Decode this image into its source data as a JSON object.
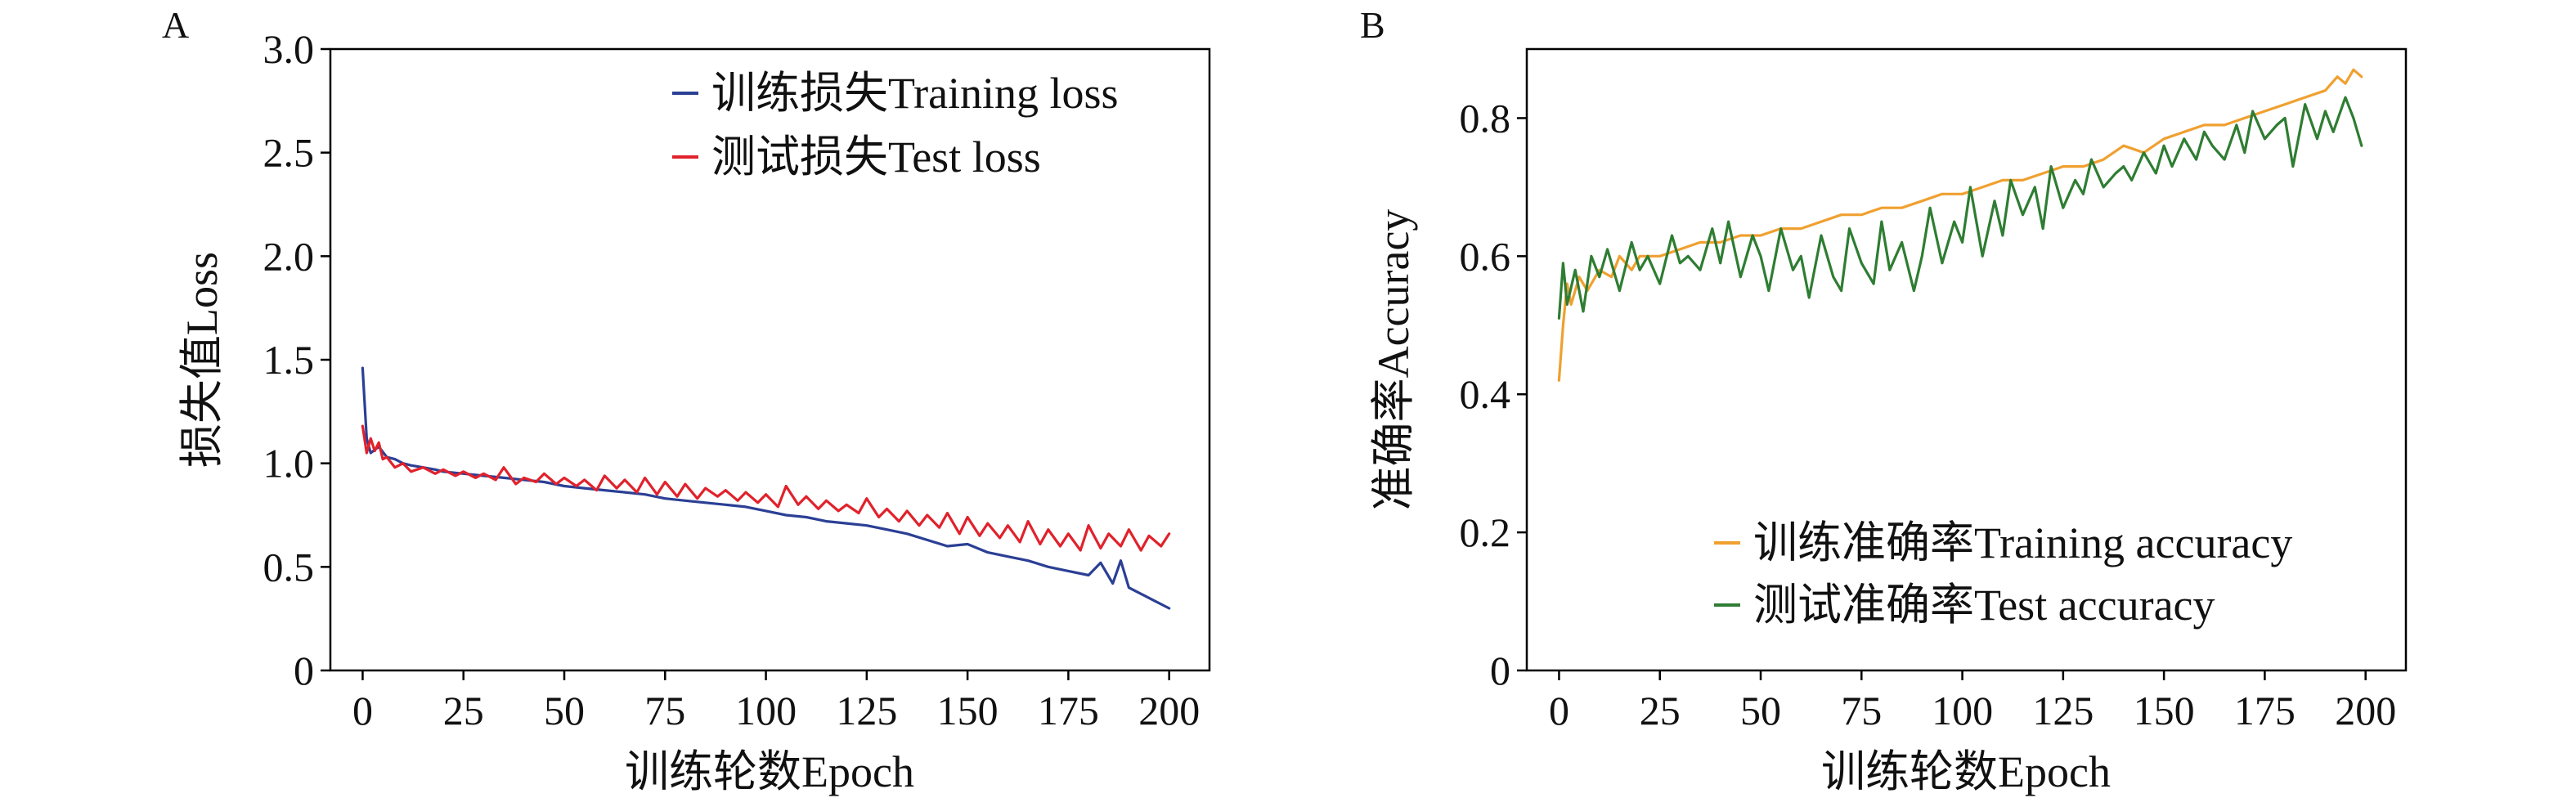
{
  "colors": {
    "training_loss": "#2b3f95",
    "test_loss": "#e0222c",
    "training_accuracy": "#f0a030",
    "test_accuracy": "#2e7d32"
  },
  "chart_data": [
    {
      "type": "line",
      "panel_label": "A",
      "title": "",
      "xlabel": "训练轮数Epoch",
      "ylabel": "损失值Loss",
      "xlim": [
        -8,
        210
      ],
      "ylim": [
        0,
        3.0
      ],
      "xticks": [
        0,
        25,
        50,
        75,
        100,
        125,
        150,
        175,
        200
      ],
      "xtick_labels": [
        "0",
        "25",
        "50",
        "75",
        "100",
        "125",
        "150",
        "175",
        "200"
      ],
      "yticks": [
        0,
        0.5,
        1.0,
        1.5,
        2.0,
        2.5,
        3.0
      ],
      "ytick_labels": [
        "0",
        "0.5",
        "1.0",
        "1.5",
        "2.0",
        "2.5",
        "3.0"
      ],
      "grid": false,
      "legend_position": "top-right",
      "series": [
        {
          "name": "训练损失Training loss",
          "color_key": "training_loss",
          "x": [
            0,
            1,
            2,
            4,
            6,
            8,
            10,
            12,
            15,
            18,
            20,
            25,
            30,
            35,
            40,
            45,
            50,
            55,
            60,
            65,
            70,
            75,
            80,
            85,
            90,
            95,
            100,
            105,
            110,
            115,
            120,
            125,
            130,
            135,
            140,
            145,
            150,
            155,
            160,
            165,
            170,
            175,
            180,
            183,
            186,
            188,
            190,
            193,
            196,
            200
          ],
          "y": [
            1.46,
            1.12,
            1.05,
            1.08,
            1.03,
            1.02,
            1.0,
            0.99,
            0.98,
            0.97,
            0.96,
            0.95,
            0.94,
            0.93,
            0.92,
            0.91,
            0.89,
            0.88,
            0.87,
            0.86,
            0.85,
            0.83,
            0.82,
            0.81,
            0.8,
            0.79,
            0.77,
            0.75,
            0.74,
            0.72,
            0.71,
            0.7,
            0.68,
            0.66,
            0.63,
            0.6,
            0.61,
            0.57,
            0.55,
            0.53,
            0.5,
            0.48,
            0.46,
            0.52,
            0.42,
            0.53,
            0.4,
            0.37,
            0.34,
            0.3
          ]
        },
        {
          "name": "测试损失Test loss",
          "color_key": "test_loss",
          "x": [
            0,
            1,
            2,
            3,
            4,
            5,
            6,
            8,
            10,
            12,
            15,
            18,
            20,
            23,
            25,
            28,
            30,
            33,
            35,
            38,
            40,
            43,
            45,
            48,
            50,
            53,
            55,
            58,
            60,
            63,
            65,
            68,
            70,
            73,
            75,
            78,
            80,
            83,
            85,
            88,
            90,
            93,
            95,
            98,
            100,
            103,
            105,
            108,
            110,
            113,
            115,
            118,
            120,
            123,
            125,
            128,
            130,
            133,
            135,
            138,
            140,
            143,
            145,
            148,
            150,
            153,
            155,
            158,
            160,
            163,
            165,
            168,
            170,
            173,
            175,
            178,
            180,
            183,
            185,
            188,
            190,
            193,
            195,
            198,
            200
          ],
          "y": [
            1.18,
            1.05,
            1.12,
            1.06,
            1.1,
            1.02,
            1.03,
            0.98,
            1.0,
            0.96,
            0.98,
            0.95,
            0.97,
            0.94,
            0.96,
            0.93,
            0.95,
            0.92,
            0.98,
            0.9,
            0.93,
            0.91,
            0.95,
            0.9,
            0.93,
            0.89,
            0.92,
            0.87,
            0.94,
            0.88,
            0.92,
            0.86,
            0.93,
            0.85,
            0.91,
            0.84,
            0.9,
            0.83,
            0.88,
            0.84,
            0.87,
            0.82,
            0.86,
            0.81,
            0.85,
            0.79,
            0.89,
            0.8,
            0.84,
            0.78,
            0.82,
            0.77,
            0.8,
            0.76,
            0.83,
            0.74,
            0.78,
            0.72,
            0.77,
            0.7,
            0.75,
            0.69,
            0.76,
            0.66,
            0.74,
            0.65,
            0.71,
            0.64,
            0.7,
            0.62,
            0.72,
            0.61,
            0.68,
            0.6,
            0.66,
            0.58,
            0.7,
            0.59,
            0.66,
            0.6,
            0.68,
            0.58,
            0.65,
            0.6,
            0.66
          ]
        }
      ]
    },
    {
      "type": "line",
      "panel_label": "B",
      "title": "",
      "xlabel": "训练轮数Epoch",
      "ylabel": "准确率Accuracy",
      "xlim": [
        -8,
        210
      ],
      "ylim": [
        0,
        0.9
      ],
      "xticks": [
        0,
        25,
        50,
        75,
        100,
        125,
        150,
        175,
        200
      ],
      "xtick_labels": [
        "0",
        "25",
        "50",
        "75",
        "100",
        "125",
        "150",
        "175",
        "200"
      ],
      "yticks": [
        0,
        0.2,
        0.4,
        0.6,
        0.8
      ],
      "ytick_labels": [
        "0",
        "0.2",
        "0.4",
        "0.6",
        "0.8"
      ],
      "grid": false,
      "legend_position": "bottom-right",
      "series": [
        {
          "name": "训练准确率Training accuracy",
          "color_key": "training_accuracy",
          "x": [
            0,
            1,
            2,
            3,
            5,
            7,
            10,
            13,
            15,
            18,
            20,
            25,
            30,
            35,
            40,
            45,
            50,
            55,
            60,
            65,
            70,
            75,
            80,
            85,
            90,
            95,
            100,
            105,
            110,
            115,
            120,
            125,
            130,
            135,
            140,
            145,
            150,
            155,
            160,
            165,
            170,
            175,
            180,
            185,
            190,
            193,
            195,
            197,
            199
          ],
          "y": [
            0.42,
            0.5,
            0.56,
            0.53,
            0.57,
            0.55,
            0.58,
            0.57,
            0.6,
            0.58,
            0.6,
            0.6,
            0.61,
            0.62,
            0.62,
            0.63,
            0.63,
            0.64,
            0.64,
            0.65,
            0.66,
            0.66,
            0.67,
            0.67,
            0.68,
            0.69,
            0.69,
            0.7,
            0.71,
            0.71,
            0.72,
            0.73,
            0.73,
            0.74,
            0.76,
            0.75,
            0.77,
            0.78,
            0.79,
            0.79,
            0.8,
            0.81,
            0.82,
            0.83,
            0.84,
            0.86,
            0.85,
            0.87,
            0.86
          ]
        },
        {
          "name": "测试准确率Test accuracy",
          "color_key": "test_accuracy",
          "x": [
            0,
            1,
            2,
            4,
            6,
            8,
            10,
            12,
            15,
            18,
            20,
            22,
            25,
            28,
            30,
            32,
            35,
            38,
            40,
            42,
            45,
            48,
            50,
            52,
            55,
            58,
            60,
            62,
            65,
            68,
            70,
            72,
            75,
            78,
            80,
            82,
            85,
            88,
            90,
            92,
            95,
            98,
            100,
            102,
            105,
            108,
            110,
            112,
            115,
            118,
            120,
            122,
            125,
            128,
            130,
            132,
            135,
            138,
            140,
            142,
            145,
            148,
            150,
            152,
            155,
            158,
            160,
            162,
            165,
            168,
            170,
            172,
            175,
            178,
            180,
            182,
            185,
            188,
            190,
            192,
            195,
            197,
            199
          ],
          "y": [
            0.51,
            0.59,
            0.53,
            0.58,
            0.52,
            0.6,
            0.57,
            0.61,
            0.55,
            0.62,
            0.58,
            0.6,
            0.56,
            0.63,
            0.59,
            0.6,
            0.58,
            0.64,
            0.59,
            0.65,
            0.57,
            0.63,
            0.6,
            0.55,
            0.64,
            0.58,
            0.6,
            0.54,
            0.63,
            0.57,
            0.55,
            0.64,
            0.59,
            0.56,
            0.65,
            0.58,
            0.62,
            0.55,
            0.6,
            0.67,
            0.59,
            0.65,
            0.62,
            0.7,
            0.6,
            0.68,
            0.63,
            0.71,
            0.66,
            0.7,
            0.64,
            0.73,
            0.67,
            0.71,
            0.69,
            0.74,
            0.7,
            0.72,
            0.73,
            0.71,
            0.75,
            0.72,
            0.76,
            0.73,
            0.77,
            0.74,
            0.78,
            0.76,
            0.74,
            0.79,
            0.75,
            0.81,
            0.77,
            0.79,
            0.8,
            0.73,
            0.82,
            0.77,
            0.81,
            0.78,
            0.83,
            0.8,
            0.76
          ]
        }
      ]
    }
  ]
}
